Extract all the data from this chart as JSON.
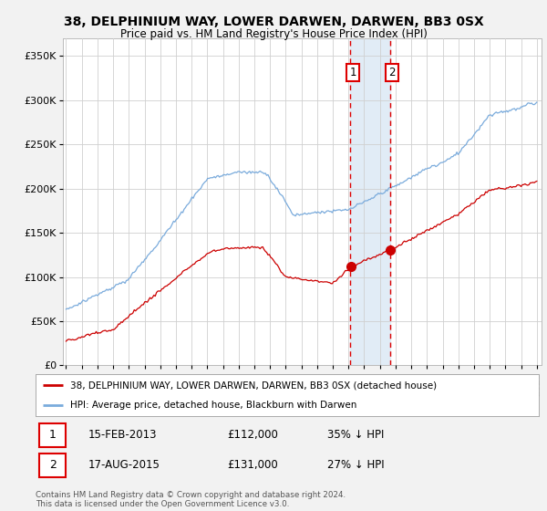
{
  "title": "38, DELPHINIUM WAY, LOWER DARWEN, DARWEN, BB3 0SX",
  "subtitle": "Price paid vs. HM Land Registry's House Price Index (HPI)",
  "ylim": [
    0,
    370000
  ],
  "yticks": [
    0,
    50000,
    100000,
    150000,
    200000,
    250000,
    300000,
    350000
  ],
  "ytick_labels": [
    "£0",
    "£50K",
    "£100K",
    "£150K",
    "£200K",
    "£250K",
    "£300K",
    "£350K"
  ],
  "background_color": "#f2f2f2",
  "plot_bg_color": "#ffffff",
  "hpi_color": "#7aabdc",
  "price_color": "#cc0000",
  "annotation_box_color": "#dce9f5",
  "annotation_border_color": "#dd0000",
  "transaction1_date_num": 2013.12,
  "transaction2_date_num": 2015.63,
  "transaction1_label": "1",
  "transaction2_label": "2",
  "transaction1_price": 112000,
  "transaction2_price": 131000,
  "legend_entries": [
    "38, DELPHINIUM WAY, LOWER DARWEN, DARWEN, BB3 0SX (detached house)",
    "HPI: Average price, detached house, Blackburn with Darwen"
  ],
  "table_rows": [
    [
      "1",
      "15-FEB-2013",
      "£112,000",
      "35% ↓ HPI"
    ],
    [
      "2",
      "17-AUG-2015",
      "£131,000",
      "27% ↓ HPI"
    ]
  ],
  "footnote": "Contains HM Land Registry data © Crown copyright and database right 2024.\nThis data is licensed under the Open Government Licence v3.0.",
  "start_year": 1995,
  "end_year": 2025
}
